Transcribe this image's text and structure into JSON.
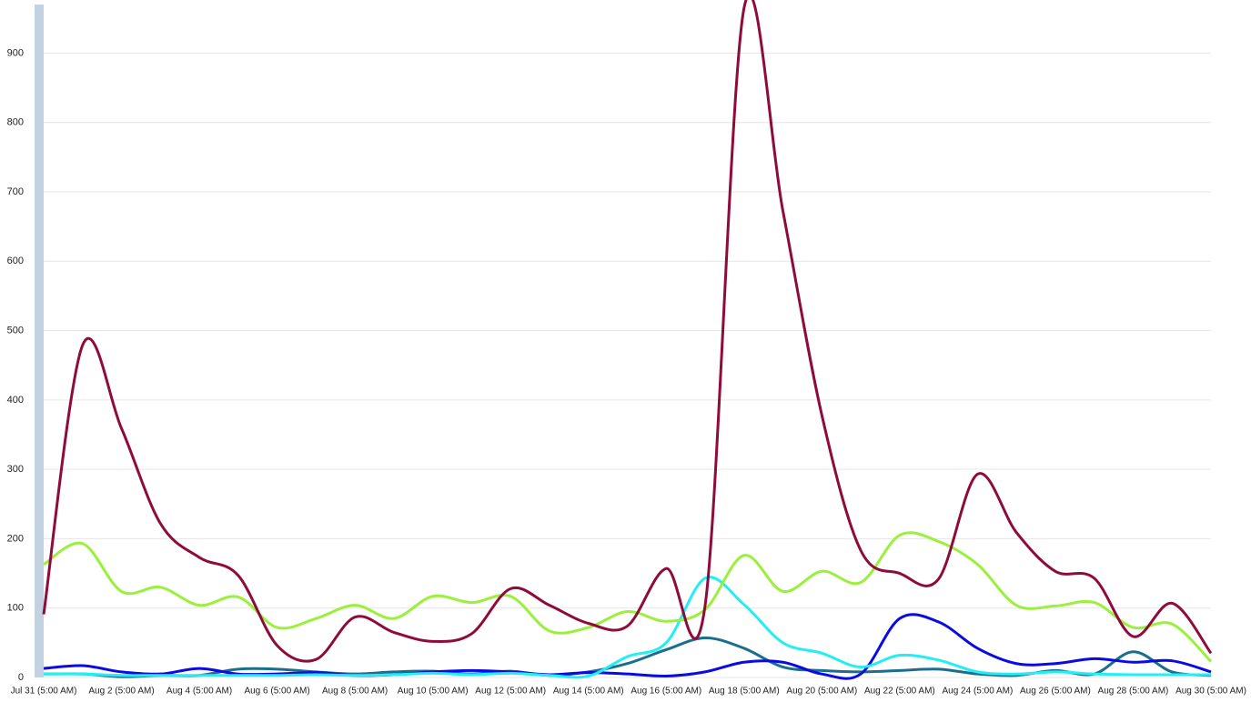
{
  "chart_data": {
    "type": "line",
    "categories": [
      "Jul 31 (5:00 AM)",
      null,
      "Aug 2 (5:00 AM)",
      null,
      "Aug 4 (5:00 AM)",
      null,
      "Aug 6 (5:00 AM)",
      null,
      "Aug 8 (5:00 AM)",
      null,
      "Aug 10 (5:00 AM)",
      null,
      "Aug 12 (5:00 AM)",
      null,
      "Aug 14 (5:00 AM)",
      null,
      "Aug 16 (5:00 AM)",
      null,
      "Aug 18 (5:00 AM)",
      null,
      "Aug 20 (5:00 AM)",
      null,
      "Aug 22 (5:00 AM)",
      null,
      "Aug 24 (5:00 AM)",
      null,
      "Aug 26 (5:00 AM)",
      null,
      "Aug 28 (5:00 AM)",
      null,
      "Aug 30 (5:00 AM)"
    ],
    "ylim": [
      0,
      970
    ],
    "yticks": [
      0,
      100,
      200,
      300,
      400,
      500,
      600,
      700,
      800,
      900
    ],
    "grid": true,
    "series": [
      {
        "color": "#1b6f8c",
        "values": [
          5,
          5,
          1,
          3,
          3,
          12,
          12,
          8,
          5,
          8,
          9,
          5,
          9,
          3,
          8,
          20,
          40,
          57,
          42,
          15,
          10,
          8,
          10,
          12,
          5,
          3,
          10,
          5,
          37,
          8,
          3
        ]
      },
      {
        "color": "#0a0ae6",
        "values": [
          13,
          17,
          8,
          5,
          13,
          5,
          5,
          7,
          3,
          4,
          8,
          10,
          8,
          4,
          7,
          5,
          2,
          8,
          22,
          22,
          5,
          5,
          85,
          80,
          42,
          20,
          20,
          27,
          22,
          24,
          8
        ]
      },
      {
        "color": "#22eef5",
        "values": [
          5,
          5,
          3,
          3,
          3,
          3,
          3,
          4,
          3,
          4,
          6,
          4,
          6,
          3,
          2,
          30,
          50,
          143,
          105,
          50,
          35,
          15,
          32,
          25,
          8,
          5,
          8,
          5,
          4,
          4,
          4
        ]
      },
      {
        "color": "#9af03a",
        "values": [
          163,
          193,
          124,
          130,
          104,
          116,
          72,
          85,
          104,
          85,
          117,
          108,
          117,
          67,
          72,
          95,
          81,
          98,
          176,
          124,
          153,
          137,
          205,
          196,
          163,
          104,
          103,
          108,
          72,
          77,
          23
        ]
      },
      {
        "color": "#8e0b3c",
        "values": [
          91,
          479,
          359,
          222,
          173,
          147,
          46,
          26,
          87,
          65,
          52,
          63,
          128,
          104,
          78,
          74,
          157,
          104,
          965,
          672,
          378,
          183,
          150,
          142,
          293,
          209,
          153,
          143,
          59,
          107,
          35
        ]
      }
    ]
  }
}
